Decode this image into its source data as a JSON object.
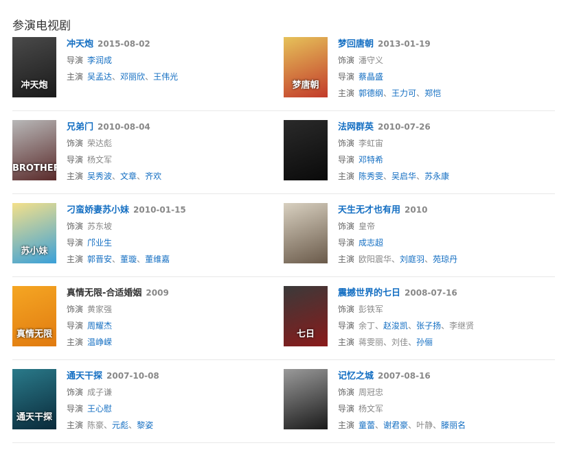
{
  "section_title": "参演电视剧",
  "labels": {
    "role": "饰演",
    "director": "导演",
    "cast": "主演",
    "separator": "、"
  },
  "colors": {
    "link": "#136ec2",
    "text": "#666666",
    "muted": "#888888"
  },
  "items": [
    {
      "title": "冲天炮",
      "title_link": true,
      "date": "2015-08-02",
      "poster_text": "冲天炮",
      "poster_colors": [
        "#4a4a4a",
        "#1a1a1a"
      ],
      "role": null,
      "director": [
        {
          "name": "李润成",
          "link": true
        }
      ],
      "cast": [
        {
          "name": "吴孟达",
          "link": true
        },
        {
          "name": "邓丽欣",
          "link": true
        },
        {
          "name": "王伟光",
          "link": true
        }
      ]
    },
    {
      "title": "梦回唐朝",
      "title_link": true,
      "date": "2013-01-19",
      "poster_text": "梦唐朝",
      "poster_colors": [
        "#e6c25a",
        "#c23a2a"
      ],
      "role": [
        {
          "name": "潘守义",
          "link": false
        }
      ],
      "director": [
        {
          "name": "蔡晶盛",
          "link": true
        }
      ],
      "cast": [
        {
          "name": "郭德纲",
          "link": true
        },
        {
          "name": "王力可",
          "link": true
        },
        {
          "name": "郑恺",
          "link": true
        }
      ]
    },
    {
      "title": "兄弟门",
      "title_link": true,
      "date": "2010-08-04",
      "poster_text": "BROTHERS",
      "poster_colors": [
        "#b8b8b8",
        "#5a2a2a"
      ],
      "role": [
        {
          "name": "荣达彪",
          "link": false
        }
      ],
      "director": [
        {
          "name": "杨文军",
          "link": false
        }
      ],
      "cast": [
        {
          "name": "吴秀波",
          "link": true
        },
        {
          "name": "文章",
          "link": true
        },
        {
          "name": "齐欢",
          "link": true
        }
      ]
    },
    {
      "title": "法网群英",
      "title_link": true,
      "date": "2010-07-26",
      "poster_text": "",
      "poster_colors": [
        "#2a2a2a",
        "#0a0a0a"
      ],
      "role": [
        {
          "name": "李虹宙",
          "link": false
        }
      ],
      "director": [
        {
          "name": "邓特希",
          "link": true
        }
      ],
      "cast": [
        {
          "name": "陈秀雯",
          "link": true
        },
        {
          "name": "吴启华",
          "link": true
        },
        {
          "name": "苏永康",
          "link": true
        }
      ]
    },
    {
      "title": "刁蛮娇妻苏小妹",
      "title_link": true,
      "date": "2010-01-15",
      "poster_text": "苏小妹",
      "poster_colors": [
        "#f4e08a",
        "#3aa0d8"
      ],
      "role": [
        {
          "name": "苏东坡",
          "link": false
        }
      ],
      "director": [
        {
          "name": "邝业生",
          "link": true
        }
      ],
      "cast": [
        {
          "name": "郭晋安",
          "link": true
        },
        {
          "name": "董璇",
          "link": true
        },
        {
          "name": "董维嘉",
          "link": true
        }
      ]
    },
    {
      "title": "天生无才也有用",
      "title_link": true,
      "date": "2010",
      "poster_text": "",
      "poster_colors": [
        "#d8d0c0",
        "#6a5a4a"
      ],
      "role": [
        {
          "name": "皇帝",
          "link": false
        }
      ],
      "director": [
        {
          "name": "成志超",
          "link": true
        }
      ],
      "cast": [
        {
          "name": "欧阳震华",
          "link": false
        },
        {
          "name": "刘庭羽",
          "link": true
        },
        {
          "name": "苑琼丹",
          "link": true
        }
      ]
    },
    {
      "title": "真情无限-合适婚姻",
      "title_link": false,
      "date": "2009",
      "poster_text": "真情无限",
      "poster_colors": [
        "#f5a623",
        "#e07a10"
      ],
      "role": [
        {
          "name": "黄家强",
          "link": false
        }
      ],
      "director": [
        {
          "name": "周耀杰",
          "link": true
        }
      ],
      "cast": [
        {
          "name": "温峥嵘",
          "link": true
        }
      ]
    },
    {
      "title": "震撼世界的七日",
      "title_link": true,
      "date": "2008-07-16",
      "poster_text": "七日",
      "poster_colors": [
        "#3a3a3a",
        "#8a1a1a"
      ],
      "role": [
        {
          "name": "彭铁军",
          "link": false
        }
      ],
      "director": [
        {
          "name": "余丁",
          "link": false
        },
        {
          "name": "赵浚凯",
          "link": true
        },
        {
          "name": "张子扬",
          "link": true
        },
        {
          "name": "李继贤",
          "link": false
        }
      ],
      "cast": [
        {
          "name": "蒋雯丽",
          "link": false
        },
        {
          "name": "刘佳",
          "link": false
        },
        {
          "name": "孙俪",
          "link": true
        }
      ]
    },
    {
      "title": "通天干探",
      "title_link": true,
      "date": "2007-10-08",
      "poster_text": "通天干探",
      "poster_colors": [
        "#2a7a8a",
        "#0a2a3a"
      ],
      "role": [
        {
          "name": "成子谦",
          "link": false
        }
      ],
      "director": [
        {
          "name": "王心慰",
          "link": true
        }
      ],
      "cast": [
        {
          "name": "陈豪",
          "link": false
        },
        {
          "name": "元彪",
          "link": true
        },
        {
          "name": "黎姿",
          "link": true
        }
      ]
    },
    {
      "title": "记忆之城",
      "title_link": true,
      "date": "2007-08-16",
      "poster_text": "",
      "poster_colors": [
        "#9a9a9a",
        "#1a1a1a"
      ],
      "role": [
        {
          "name": "周冠忠",
          "link": false
        }
      ],
      "director": [
        {
          "name": "杨文军",
          "link": false
        }
      ],
      "cast": [
        {
          "name": "童蕾",
          "link": true
        },
        {
          "name": "谢君豪",
          "link": true
        },
        {
          "name": "叶静",
          "link": false
        },
        {
          "name": "滕丽名",
          "link": true
        }
      ]
    }
  ]
}
